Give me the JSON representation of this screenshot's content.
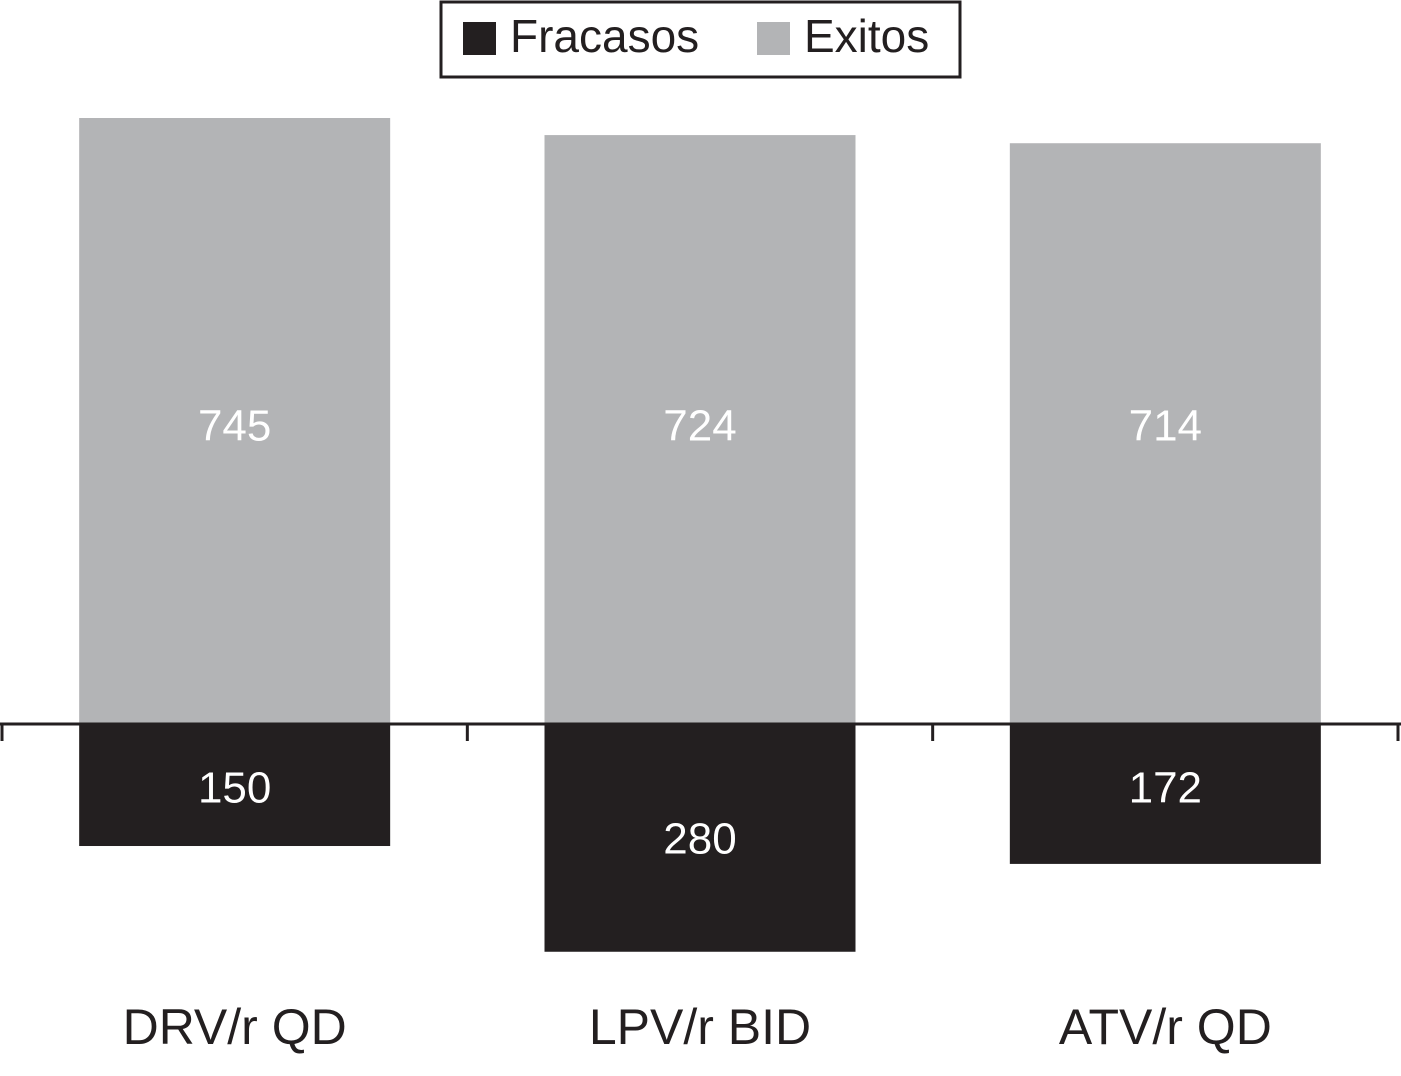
{
  "chart_data": {
    "type": "bar",
    "categories": [
      "DRV/r QD",
      "LPV/r BID",
      "ATV/r QD"
    ],
    "series": [
      {
        "name": "Fracasos",
        "color": "#231f20",
        "direction": "down",
        "values": [
          150,
          280,
          172
        ]
      },
      {
        "name": "Exitos",
        "color": "#b3b4b6",
        "direction": "up",
        "values": [
          745,
          724,
          714
        ]
      }
    ],
    "legend": "top"
  }
}
